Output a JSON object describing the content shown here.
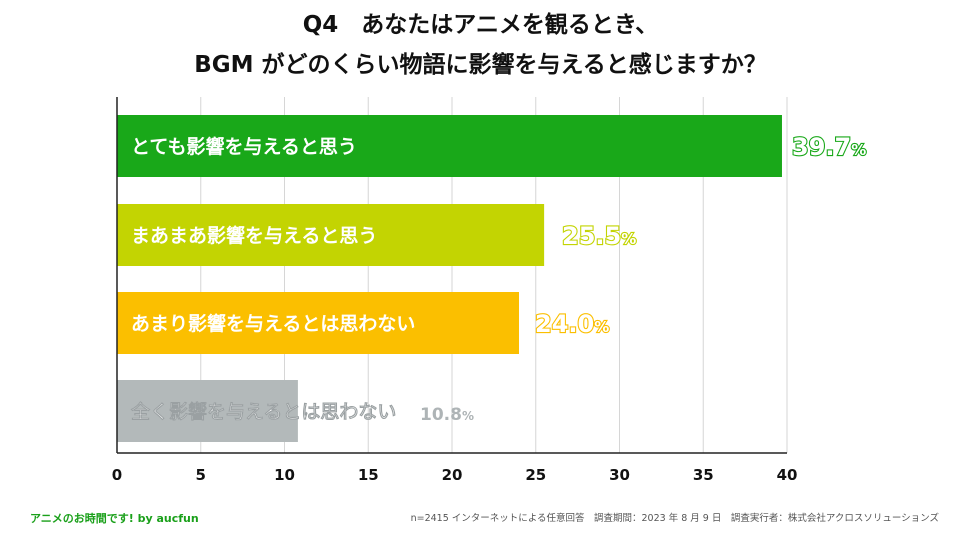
{
  "title_line1": "Q4　あなたはアニメを観るとき、",
  "title_line2": "BGM がどのくらい物語に影響を与えると感じますか？",
  "chart_data": {
    "type": "bar",
    "orientation": "horizontal",
    "categories": [
      "とても影響を与えると思う",
      "まあまあ影響を与えると思う",
      "あまり影響を与えるとは思わない",
      "全く影響を与えるとは思わない"
    ],
    "values": [
      39.7,
      25.5,
      24.0,
      10.8
    ],
    "value_labels": [
      "39.7",
      "25.5",
      "24.0",
      "10.8"
    ],
    "value_suffix": "%",
    "colors": [
      "#19a819",
      "#c3d402",
      "#fbbf00",
      "#b3b9ba"
    ],
    "xlim": [
      0,
      40
    ],
    "xticks": [
      "0",
      "5",
      "10",
      "15",
      "20",
      "25",
      "30",
      "35",
      "40"
    ],
    "grid": true
  },
  "footer": {
    "brand": "アニメのお時間です! by aucfun",
    "note": "n=2415 インターネットによる任意回答　調査期間：2023 年 8 月 9 日　調査実行者：株式会社アクロスソリューションズ"
  }
}
